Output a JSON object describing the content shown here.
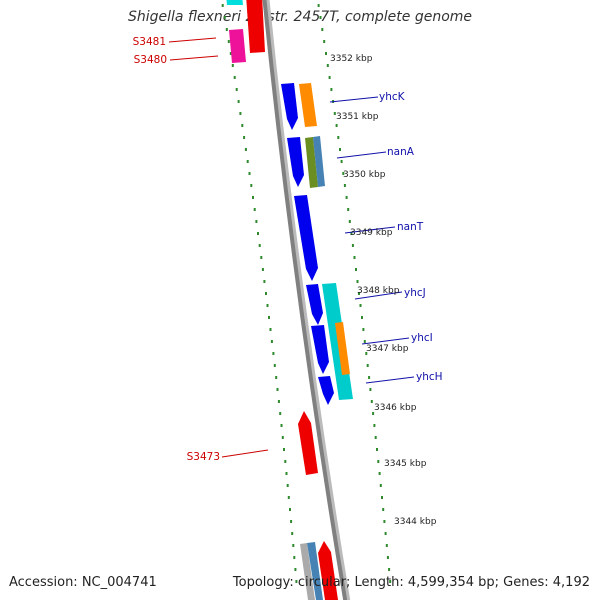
{
  "map": {
    "title": "Shigella flexneri 2a str. 2457T, complete genome",
    "accession": "Accession: NC_004741",
    "topology": "Topology: circular; Length: 4,599,354 bp; Genes: 4,192",
    "colors": {
      "backbone": "#888888",
      "ticks": "#2e8b2e",
      "gene_labels": "#1010aa",
      "locus_labels": "#cc0000",
      "forward_cds": "#0000ee",
      "reverse_cds": "#ee0000"
    },
    "kbp_labels": [
      "3352 kbp",
      "3351 kbp",
      "3350 kbp",
      "3349 kbp",
      "3348 kbp",
      "3347 kbp",
      "3346 kbp",
      "3345 kbp",
      "3344 kbp"
    ],
    "gene_labels": [
      "yhcK",
      "nanA",
      "nanT",
      "yhcJ",
      "yhcI",
      "yhcH"
    ],
    "locus_labels": [
      "S3481",
      "S3480",
      "S3473"
    ],
    "features": [
      {
        "kind": "forward",
        "color": "#0000ee"
      },
      {
        "kind": "forward",
        "color": "#0000ee"
      },
      {
        "kind": "forward",
        "color": "#0000ee"
      },
      {
        "kind": "forward",
        "color": "#0000ee"
      },
      {
        "kind": "forward",
        "color": "#0000ee"
      },
      {
        "kind": "forward",
        "color": "#0000ee"
      },
      {
        "kind": "cog",
        "color": "#ff8c00"
      },
      {
        "kind": "cog",
        "color": "#6b8e23"
      },
      {
        "kind": "cog",
        "color": "#4682b4"
      },
      {
        "kind": "cog",
        "color": "#00cccc"
      },
      {
        "kind": "cog",
        "color": "#ff8c00"
      },
      {
        "kind": "reverse",
        "color": "#ee0000"
      },
      {
        "kind": "reverse",
        "color": "#ee0000"
      },
      {
        "kind": "reverse",
        "color": "#ee0000"
      },
      {
        "kind": "cog",
        "color": "#ee1199"
      },
      {
        "kind": "cog",
        "color": "#00dddd"
      },
      {
        "kind": "cog",
        "color": "#aaaaaa"
      },
      {
        "kind": "cog",
        "color": "#4682b4"
      }
    ]
  }
}
